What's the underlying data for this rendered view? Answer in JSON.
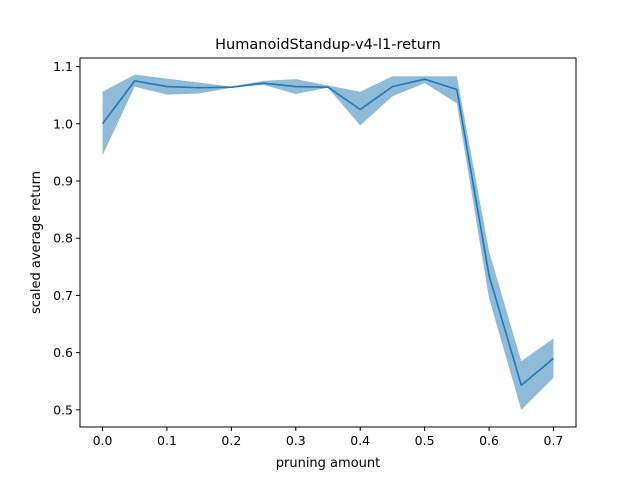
{
  "chart_data": {
    "type": "line",
    "title": "HumanoidStandup-v4-l1-return",
    "xlabel": "pruning amount",
    "ylabel": "scaled average return",
    "xlim": [
      -0.035,
      0.735
    ],
    "ylim": [
      0.47,
      1.115
    ],
    "xticks": [
      0.0,
      0.1,
      0.2,
      0.3,
      0.4,
      0.5,
      0.6,
      0.7
    ],
    "xtick_labels": [
      "0.0",
      "0.1",
      "0.2",
      "0.3",
      "0.4",
      "0.5",
      "0.6",
      "0.7"
    ],
    "yticks": [
      0.5,
      0.6,
      0.7,
      0.8,
      0.9,
      1.0,
      1.1
    ],
    "ytick_labels": [
      "0.5",
      "0.6",
      "0.7",
      "0.8",
      "0.9",
      "1.0",
      "1.1"
    ],
    "grid": false,
    "series": [
      {
        "x": [
          0.0,
          0.05,
          0.1,
          0.15,
          0.2,
          0.25,
          0.3,
          0.35,
          0.4,
          0.45,
          0.5,
          0.55,
          0.6,
          0.65,
          0.7
        ],
        "values": [
          1.0,
          1.075,
          1.065,
          1.063,
          1.064,
          1.071,
          1.065,
          1.064,
          1.025,
          1.065,
          1.078,
          1.06,
          0.735,
          0.543,
          0.59
        ],
        "lower": [
          0.945,
          1.065,
          1.051,
          1.053,
          1.063,
          1.068,
          1.052,
          1.063,
          0.997,
          1.048,
          1.071,
          1.036,
          0.695,
          0.5,
          0.556
        ],
        "upper": [
          1.056,
          1.086,
          1.079,
          1.072,
          1.065,
          1.075,
          1.078,
          1.067,
          1.056,
          1.083,
          1.083,
          1.083,
          0.777,
          0.585,
          0.625
        ],
        "color": "#1f77b4",
        "band_color": "#1f77b4"
      }
    ]
  }
}
